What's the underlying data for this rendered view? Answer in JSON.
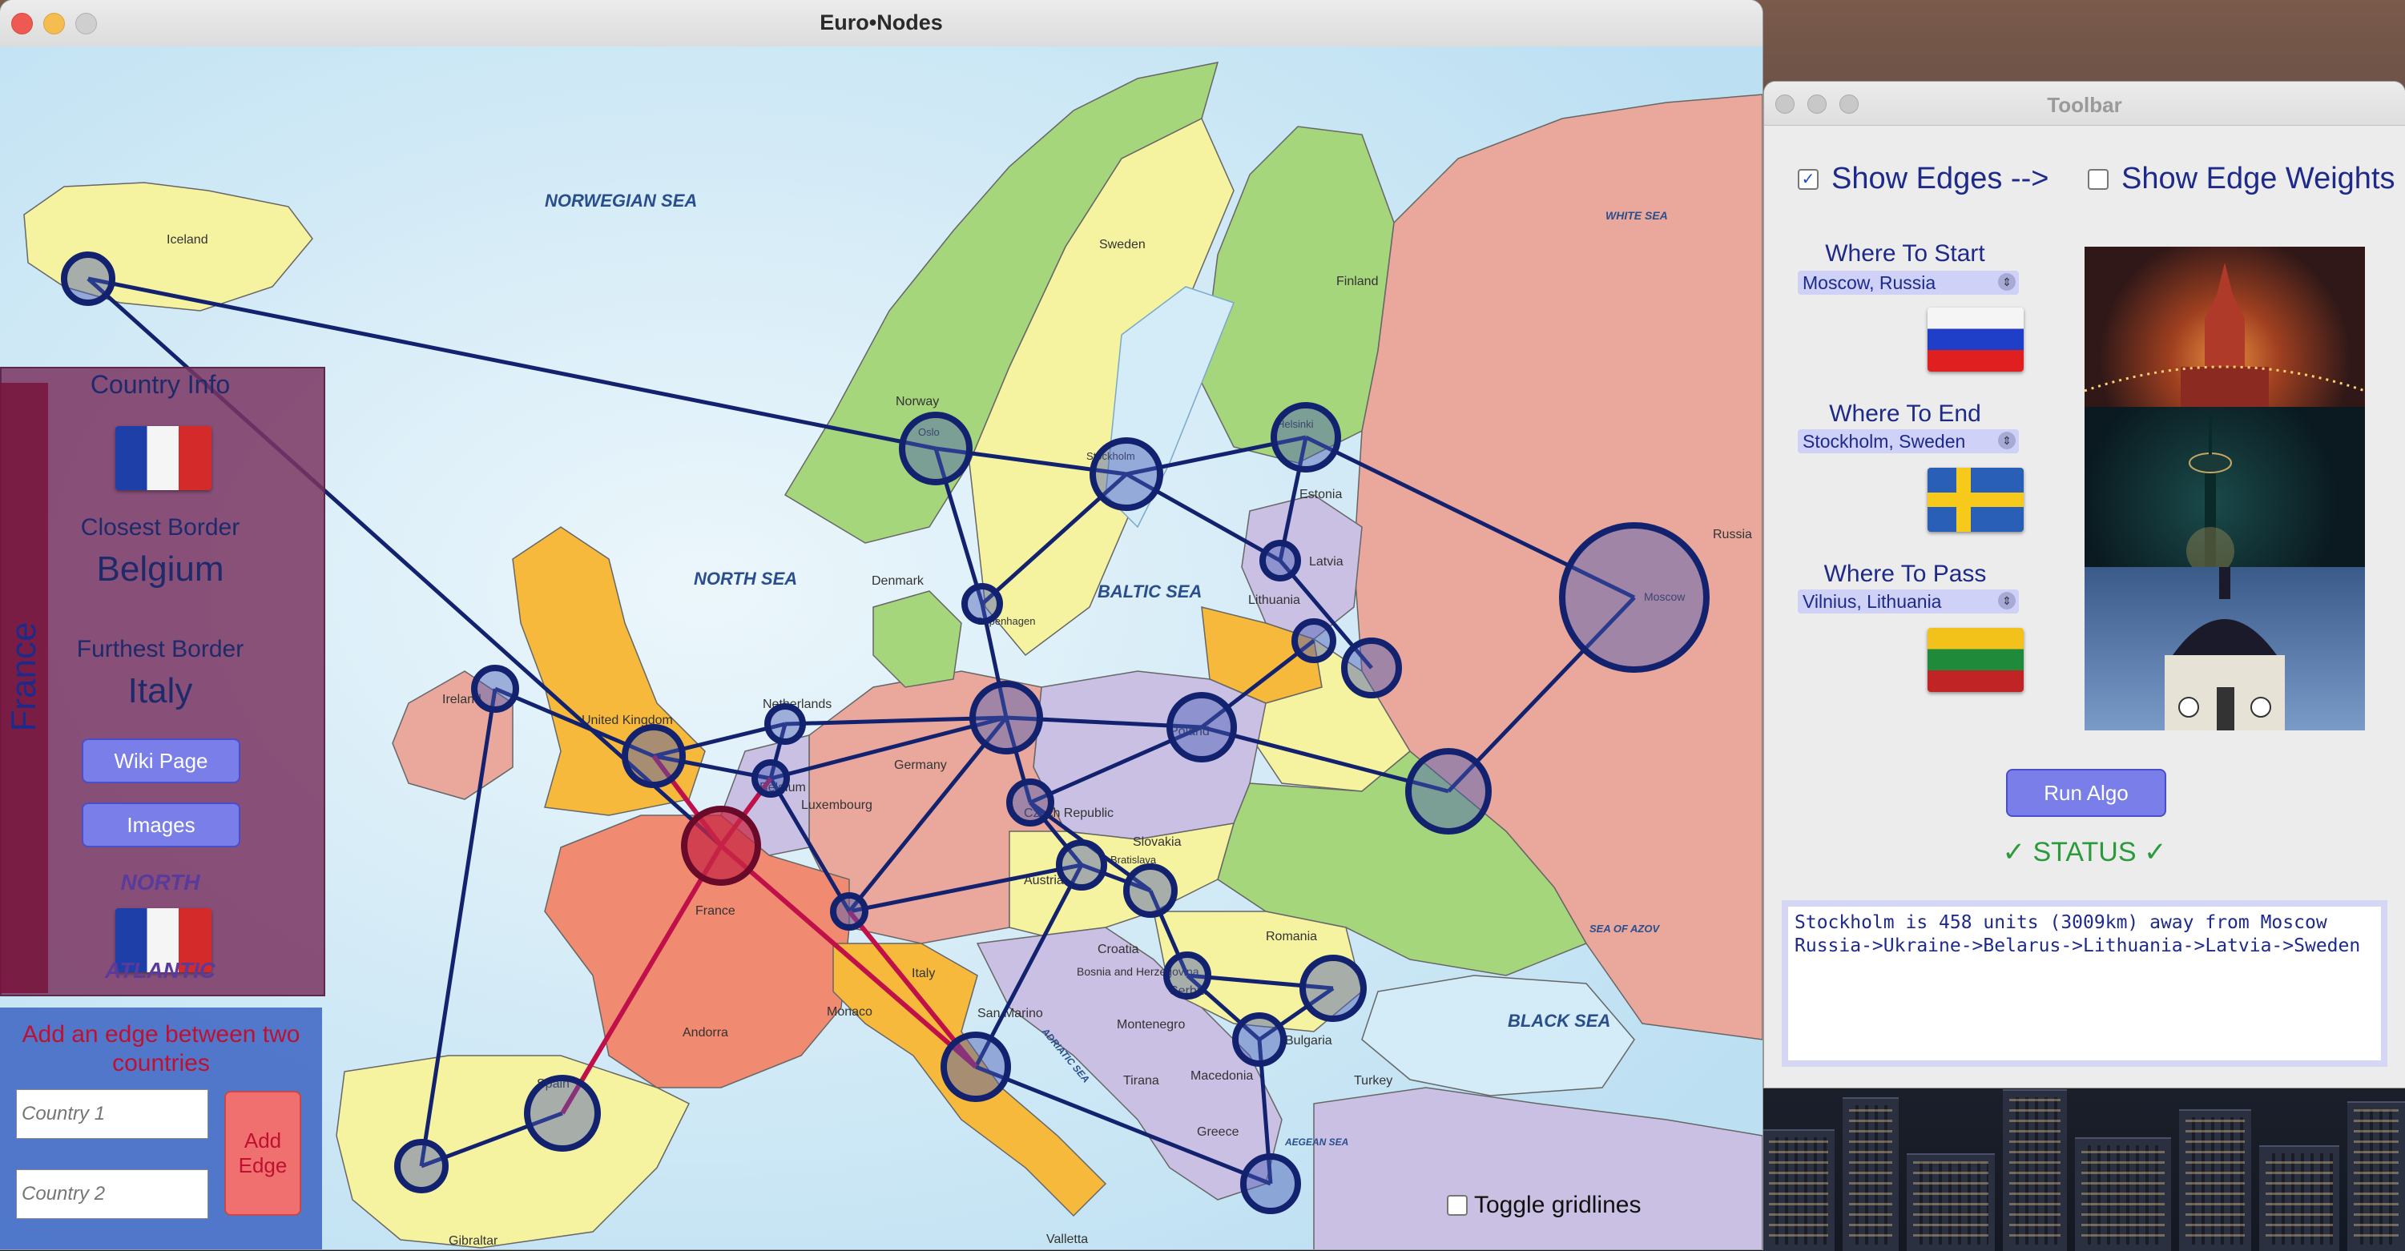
{
  "main_window": {
    "title": "Euro•Nodes",
    "traffic_colors": [
      "#ee5a52",
      "#f5bd4f",
      "#cfcfcf"
    ]
  },
  "map": {
    "sea_labels": {
      "norwegian_sea": "NORWEGIAN SEA",
      "north_sea": "NORTH SEA",
      "baltic_sea": "BALTIC SEA",
      "black_sea": "BLACK SEA",
      "white_sea": "WHITE SEA",
      "sea_of_azov": "SEA OF AZOV",
      "adriatic_sea": "ADRIATIC SEA",
      "aegean_sea": "AEGEAN SEA"
    },
    "country_labels": {
      "iceland": "Iceland",
      "norway": "Norway",
      "sweden": "Sweden",
      "finland": "Finland",
      "russia": "Russia",
      "estonia": "Estonia",
      "latvia": "Latvia",
      "lithuania": "Lithuania",
      "denmark": "Denmark",
      "ireland": "Ireland",
      "united_kingdom": "United Kingdom",
      "netherlands": "Netherlands",
      "belgium": "Belgium",
      "luxembourg": "Luxembourg",
      "germany": "Germany",
      "poland": "Poland",
      "czech_republic": "Czech Republic",
      "slovakia": "Slovakia",
      "austria": "Austria",
      "france": "France",
      "italy": "Italy",
      "spain": "Spain",
      "andorra": "Andorra",
      "monaco": "Monaco",
      "san_marino": "San Marino",
      "croatia": "Croatia",
      "bosnia": "Bosnia and Herzegovina",
      "montenegro": "Montenegro",
      "serbia": "Serbia",
      "romania": "Romania",
      "bulgaria": "Bulgaria",
      "macedonia": "Macedonia",
      "tirana": "Tirana",
      "greece": "Greece",
      "turkey": "Turkey",
      "moscow": "Moscow",
      "gibraltar": "Gibraltar",
      "valletta": "Valletta",
      "oslo": "Oslo",
      "stockholm": "Stockholm",
      "helsinki": "Helsinki",
      "copenhagen": "Copenhagen",
      "bratislava": "Bratislava"
    },
    "gridlines_label": "Toggle gridlines",
    "gridlines_checked": false,
    "edge_color": "#13226e",
    "path_color": "#c0104a"
  },
  "country_info": {
    "vertical_name": "France",
    "heading": "Country Info",
    "closest_label": "Closest Border",
    "closest_value": "Belgium",
    "furthest_label": "Furthest Border",
    "furthest_value": "Italy",
    "wiki_button": "Wiki Page",
    "images_button": "Images",
    "overlay_text_1": "NORTH",
    "overlay_text_2": "ATLANTIC"
  },
  "add_edge": {
    "heading": "Add an edge between two countries",
    "country1_placeholder": "Country 1",
    "country2_placeholder": "Country 2",
    "button": "Add Edge"
  },
  "toolbar": {
    "title": "Toolbar",
    "show_edges_label": "Show Edges -->",
    "show_edges_checked": true,
    "show_weights_label": "Show Edge Weights",
    "show_weights_checked": false,
    "start_label": "Where To Start",
    "start_value": "Moscow, Russia",
    "end_label": "Where To End",
    "end_value": "Stockholm, Sweden",
    "pass_label": "Where To Pass",
    "pass_value": "Vilnius, Lithuania",
    "run_button": "Run Algo",
    "status_heading": "✓ STATUS ✓",
    "status_line1": "Stockholm is 458 units (3009km) away from Moscow",
    "status_line2": "Russia->Ukraine->Belarus->Lithuania->Latvia->Sweden"
  }
}
